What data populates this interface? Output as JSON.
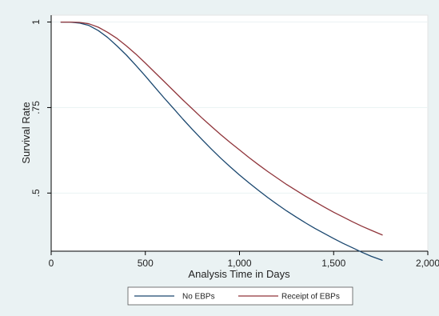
{
  "chart_data": {
    "type": "line",
    "title": "",
    "xlabel": "Analysis Time in Days",
    "ylabel": "Survival Rate",
    "xlim": [
      0,
      2000
    ],
    "ylim": [
      0.33,
      1.02
    ],
    "x_ticks": [
      0,
      500,
      1000,
      1500,
      2000
    ],
    "x_tick_labels": [
      "0",
      "500",
      "1,000",
      "1,500",
      "2,000"
    ],
    "y_ticks": [
      1,
      0.75,
      0.5
    ],
    "y_tick_labels": [
      "1",
      ".75",
      ".5"
    ],
    "grid": "horizontal",
    "legend_position": "bottom",
    "series": [
      {
        "name": "No EBPs",
        "color": "#1a476f",
        "x": [
          50,
          100,
          150,
          200,
          250,
          300,
          350,
          400,
          450,
          500,
          550,
          600,
          650,
          700,
          750,
          800,
          850,
          900,
          950,
          1000,
          1050,
          1100,
          1150,
          1200,
          1250,
          1300,
          1350,
          1400,
          1450,
          1500,
          1550,
          1600,
          1650,
          1700,
          1760
        ],
        "y": [
          1.0,
          1.0,
          0.997,
          0.99,
          0.975,
          0.955,
          0.93,
          0.903,
          0.873,
          0.842,
          0.81,
          0.778,
          0.747,
          0.716,
          0.686,
          0.657,
          0.629,
          0.602,
          0.577,
          0.553,
          0.53,
          0.508,
          0.487,
          0.467,
          0.448,
          0.43,
          0.413,
          0.397,
          0.382,
          0.367,
          0.353,
          0.34,
          0.327,
          0.315,
          0.303
        ]
      },
      {
        "name": "Receipt of EBPs",
        "color": "#90353b",
        "x": [
          50,
          100,
          150,
          200,
          250,
          300,
          350,
          400,
          450,
          500,
          550,
          600,
          650,
          700,
          750,
          800,
          850,
          900,
          950,
          1000,
          1050,
          1100,
          1150,
          1200,
          1250,
          1300,
          1350,
          1400,
          1450,
          1500,
          1550,
          1600,
          1650,
          1700,
          1760
        ],
        "y": [
          1.0,
          1.0,
          0.999,
          0.995,
          0.985,
          0.97,
          0.952,
          0.93,
          0.906,
          0.88,
          0.853,
          0.826,
          0.799,
          0.772,
          0.746,
          0.72,
          0.695,
          0.671,
          0.648,
          0.626,
          0.604,
          0.583,
          0.563,
          0.544,
          0.525,
          0.508,
          0.491,
          0.475,
          0.459,
          0.444,
          0.43,
          0.416,
          0.403,
          0.391,
          0.377
        ]
      }
    ]
  }
}
